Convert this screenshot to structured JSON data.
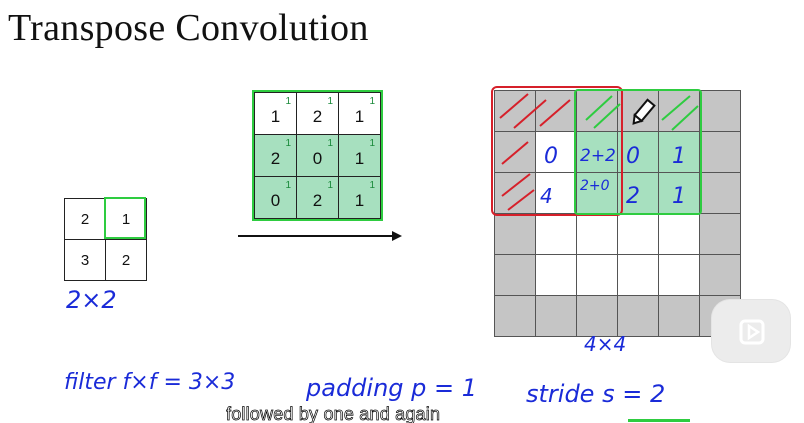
{
  "title": "Transpose Convolution",
  "input_grid": {
    "values": [
      [
        "2",
        "1"
      ],
      [
        "3",
        "2"
      ]
    ],
    "label": "2×2"
  },
  "filter_grid": {
    "values": [
      [
        "1",
        "2",
        "1"
      ],
      [
        "2",
        "0",
        "1"
      ],
      [
        "0",
        "2",
        "1"
      ]
    ],
    "weight": "1"
  },
  "output_grid": {
    "label": "4×4",
    "notes": [
      [
        "0",
        "2+2",
        "0",
        "1"
      ],
      [
        "4",
        "2+0",
        "2",
        "1"
      ]
    ]
  },
  "annotations": {
    "filter": "filter  f×f = 3×3",
    "padding": "padding  p = 1",
    "stride": "stride  s = 2"
  },
  "subtitle": "followed by one and again",
  "icons": {
    "pencil": "pencil-icon",
    "play": "play-icon"
  },
  "colors": {
    "red": "#d6202a",
    "green": "#2ecc40",
    "blue": "#1a2bd8",
    "teal": "#a7e0bf",
    "gray": "#c5c5c5"
  }
}
